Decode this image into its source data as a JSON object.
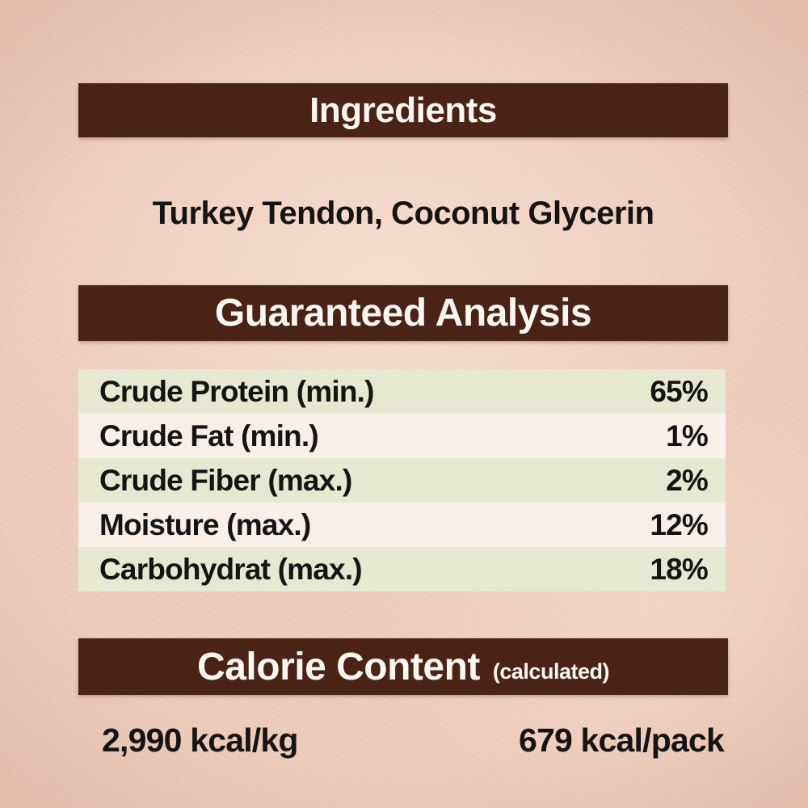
{
  "colors": {
    "background": "#efccba",
    "banner": "#4b2314",
    "banner_text": "#fcf7f2",
    "body_text": "#141414",
    "row_green": "#e7e8d2",
    "row_pink": "#f9efe9"
  },
  "ingredients": {
    "title": "Ingredients",
    "list": "Turkey Tendon, Coconut Glycerin"
  },
  "guaranteed_analysis": {
    "title": "Guaranteed Analysis",
    "rows": [
      {
        "label": "Crude Protein (min.)",
        "value": "65%"
      },
      {
        "label": "Crude Fat (min.)",
        "value": "1%"
      },
      {
        "label": "Crude Fiber (max.)",
        "value": "2%"
      },
      {
        "label": "Moisture (max.)",
        "value": "12%"
      },
      {
        "label": "Carbohydrat (max.)",
        "value": "18%"
      }
    ]
  },
  "calorie_content": {
    "title": "Calorie Content",
    "subtitle": "(calculated)",
    "kcal_per_kg": "2,990 kcal/kg",
    "kcal_per_pack": "679 kcal/pack"
  }
}
